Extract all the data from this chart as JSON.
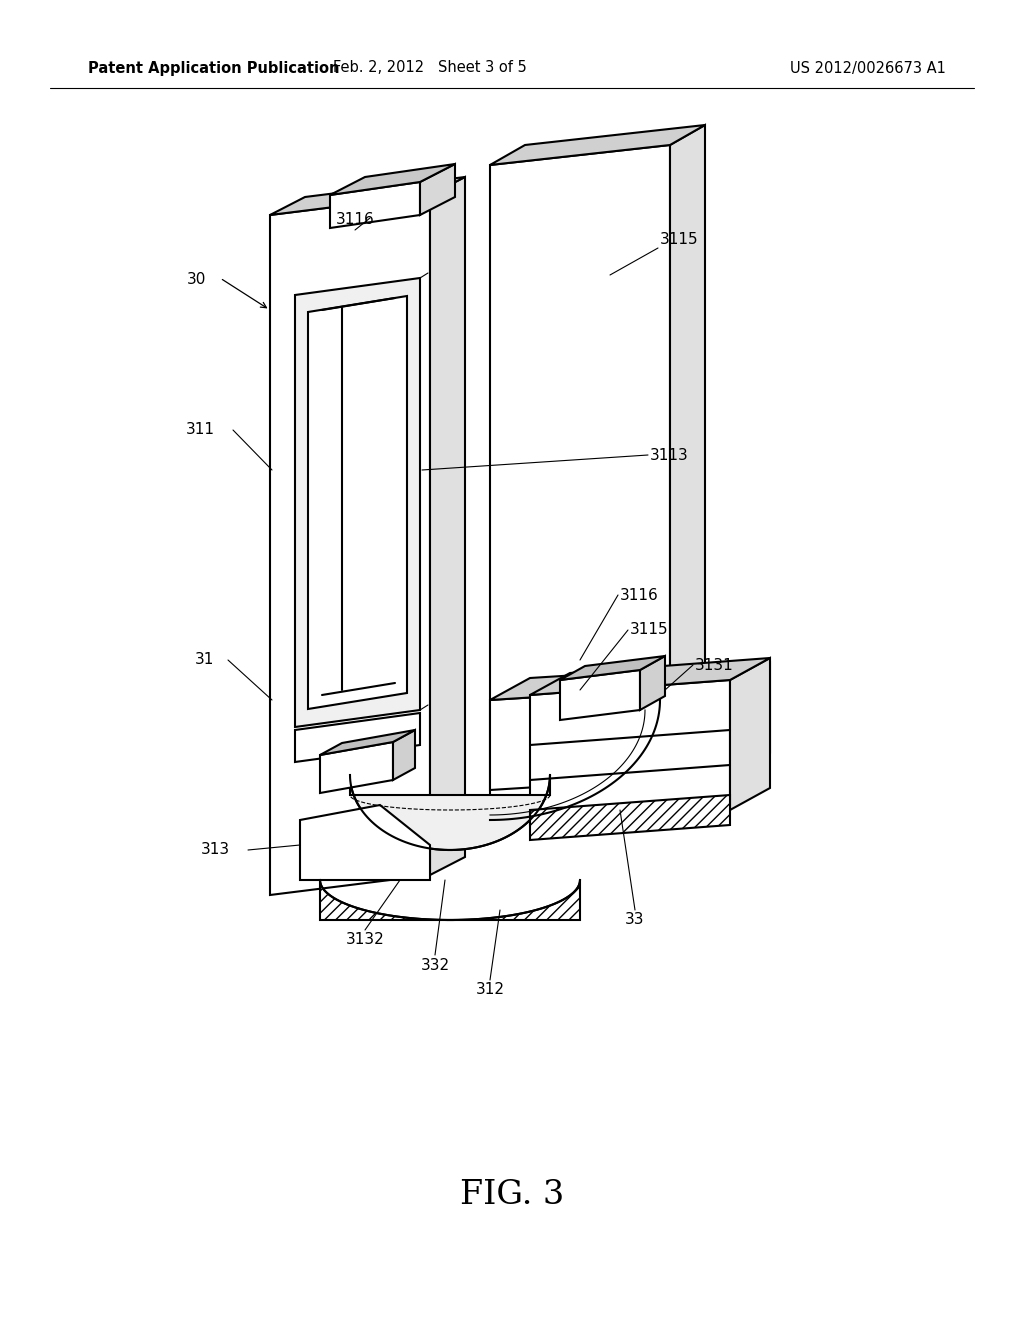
{
  "bg_color": "#ffffff",
  "header_left": "Patent Application Publication",
  "header_mid": "Feb. 2, 2012   Sheet 3 of 5",
  "header_right": "US 2012/0026673 A1",
  "header_fontsize": 10.5,
  "fig_caption": "FIG. 3",
  "fig_caption_fontsize": 24,
  "line_color": "#000000",
  "line_width": 1.5
}
